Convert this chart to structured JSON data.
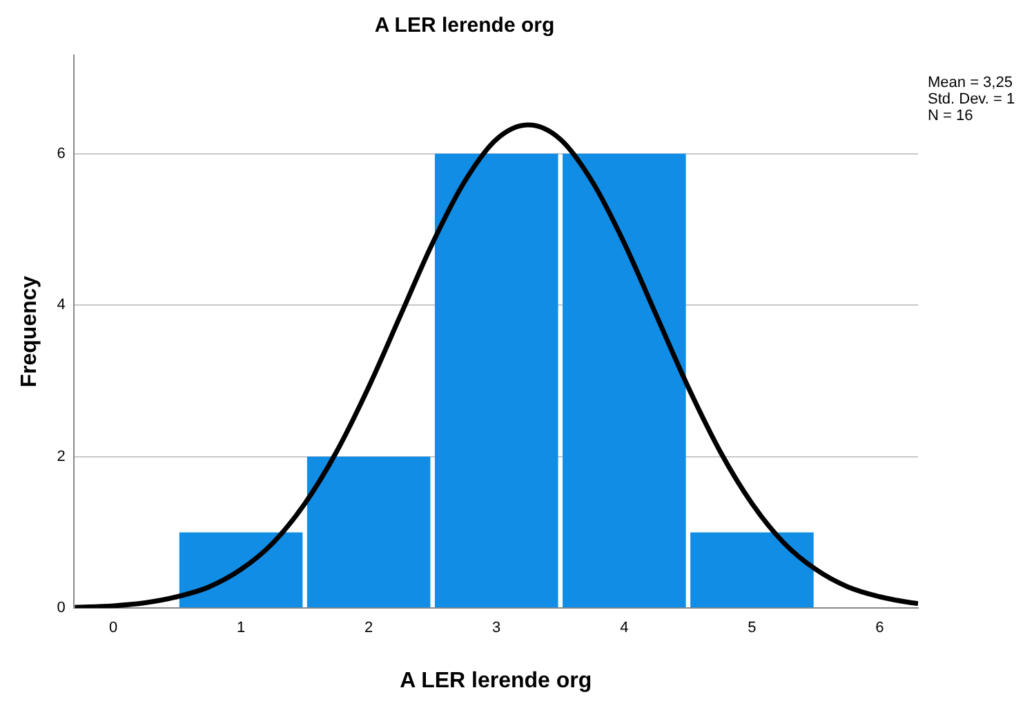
{
  "chart_data": {
    "type": "histogram",
    "title": "A LER lerende org",
    "xlabel": "A LER lerende org",
    "ylabel": "Frequency",
    "bins": [
      0.5,
      1.5,
      2.5,
      3.5,
      4.5,
      5.5
    ],
    "series": [
      {
        "color": "#118de6",
        "values": [
          1,
          2,
          6,
          6,
          1
        ]
      },
      {
        "type": "line",
        "color": "#000000",
        "x": [
          -0.3,
          0,
          0.25,
          0.5,
          0.75,
          1,
          1.25,
          1.5,
          1.75,
          2,
          2.25,
          2.5,
          2.75,
          3,
          3.25,
          3.5,
          3.75,
          4,
          4.25,
          4.5,
          4.75,
          5,
          5.25,
          5.5,
          5.75,
          6,
          6.25,
          6.3
        ],
        "values": [
          0.01,
          0.03,
          0.07,
          0.15,
          0.28,
          0.51,
          0.86,
          1.38,
          2.07,
          2.92,
          3.87,
          4.82,
          5.63,
          6.19,
          6.38,
          6.19,
          5.63,
          4.82,
          3.87,
          2.92,
          2.07,
          1.38,
          0.86,
          0.51,
          0.28,
          0.15,
          0.07,
          0.06
        ]
      }
    ],
    "xlim": [
      -0.31,
      6.3
    ],
    "xticks": [
      0,
      1,
      2,
      3,
      4,
      5,
      6
    ],
    "ylim": [
      0,
      7.3
    ],
    "yticks": [
      0,
      2,
      4,
      6
    ],
    "grid": "y",
    "legend": false,
    "marker": "none",
    "line_style": "solid",
    "annotations": [
      "Mean = 3,25",
      "Std. Dev. = 1",
      "N = 16"
    ]
  }
}
